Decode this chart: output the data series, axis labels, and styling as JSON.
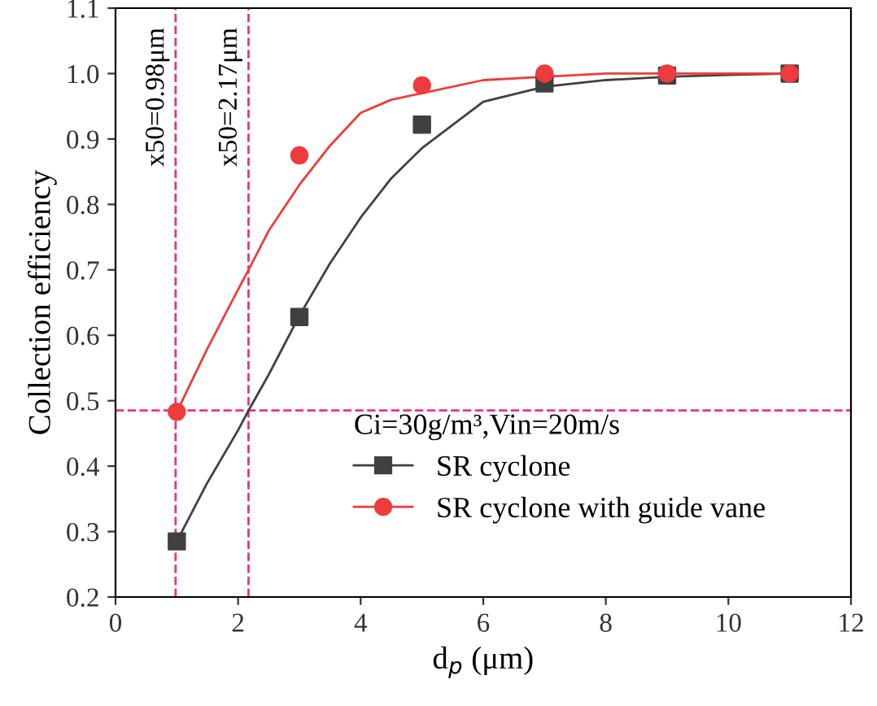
{
  "chart_data": {
    "type": "line",
    "xlabel": "d$_{p}$ (μm)",
    "ylabel": "Collection efficiency",
    "legend_title": "Ci=30g/m³,Vin=20m/s",
    "legend": "lower right",
    "grid": false,
    "xlim": [
      0,
      12
    ],
    "xticks": [
      0,
      2,
      4,
      6,
      8,
      10,
      12
    ],
    "ylim": [
      0.2,
      1.1
    ],
    "yticks": [
      {
        "value": 0.2,
        "label": "0.2"
      },
      {
        "value": 0.3,
        "label": "0.3"
      },
      {
        "value": 0.4,
        "label": "0.4"
      },
      {
        "value": 0.5,
        "label": "0.5"
      },
      {
        "value": 0.6,
        "label": "0.6"
      },
      {
        "value": 0.7,
        "label": "0.7"
      },
      {
        "value": 0.8,
        "label": "0.8"
      },
      {
        "value": 0.9,
        "label": "0.9"
      },
      {
        "value": 1.0,
        "label": "1.0"
      },
      {
        "value": 1.1,
        "label": "1.1"
      }
    ],
    "series": [
      {
        "color": "#404040",
        "marker": "none",
        "line_style": "solid",
        "x": [
          1,
          1.5,
          2,
          2.17,
          2.5,
          3,
          3.5,
          4,
          4.5,
          5,
          6,
          7,
          8,
          9,
          10,
          11
        ],
        "values": [
          0.285,
          0.375,
          0.455,
          0.485,
          0.54,
          0.63,
          0.71,
          0.78,
          0.84,
          0.886,
          0.957,
          0.98,
          0.99,
          0.995,
          0.998,
          1.0
        ]
      },
      {
        "color": "#ee3b3b",
        "marker": "none",
        "line_style": "solid",
        "x": [
          1,
          1.5,
          2,
          2.17,
          2.5,
          3,
          3.5,
          4,
          4.5,
          5,
          6,
          7,
          8,
          9,
          10,
          11
        ],
        "values": [
          0.483,
          0.58,
          0.67,
          0.7,
          0.76,
          0.83,
          0.89,
          0.94,
          0.96,
          0.97,
          0.99,
          0.995,
          1.0,
          1.0,
          1.0,
          1.0
        ]
      },
      {
        "name": "SR cyclone",
        "type": "scatter",
        "color": "#404040",
        "marker": "square",
        "x": [
          1,
          3,
          5,
          7,
          9,
          11
        ],
        "values": [
          0.285,
          0.628,
          0.922,
          0.985,
          0.997,
          1.0
        ]
      },
      {
        "name": "SR cyclone with guide vane",
        "type": "scatter",
        "color": "#ee3b3b",
        "marker": "circle",
        "x": [
          1,
          3,
          5,
          7,
          9,
          11
        ],
        "values": [
          0.483,
          0.875,
          0.982,
          1.0,
          1.0,
          1.0
        ]
      }
    ],
    "ref_lines": [
      {
        "axis": "x",
        "value": 0.98,
        "label": "x50=0.98μm",
        "color": "#e6338a",
        "line_style": "dashed"
      },
      {
        "axis": "x",
        "value": 2.17,
        "label": "x50=2.17μm",
        "color": "#e6338a",
        "line_style": "dashed"
      },
      {
        "axis": "y",
        "value": 0.485,
        "color": "#e6338a",
        "line_style": "dashed"
      }
    ]
  }
}
